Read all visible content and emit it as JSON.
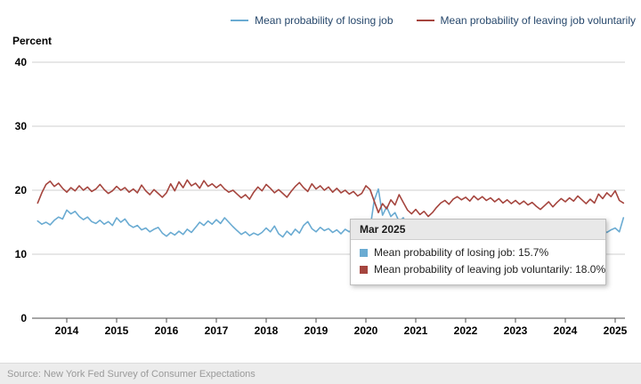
{
  "axis": {
    "y_title": "Percent"
  },
  "tooltip": {
    "title": "Mar 2025",
    "rows": [
      {
        "text": "Mean probability of losing job: 15.7%",
        "color": "#6aabd2"
      },
      {
        "text": "Mean probability of leaving job voluntarily: 18.0%",
        "color": "#a5453e"
      }
    ]
  },
  "footer": {
    "source": "Source: New York Fed Survey of Consumer Expectations"
  },
  "chart_data": {
    "type": "line",
    "title": "",
    "ylabel": "Percent",
    "ylim": [
      0,
      40
    ],
    "yticks": [
      0,
      10,
      20,
      30,
      40
    ],
    "xticks": [
      2014,
      2015,
      2016,
      2017,
      2018,
      2019,
      2020,
      2021,
      2022,
      2023,
      2024,
      2025
    ],
    "grid": "horizontal",
    "legend_position": "top-right",
    "x_start": {
      "year": 2013,
      "month": 6
    },
    "frequency": "monthly",
    "series": [
      {
        "name": "Mean probability of losing job",
        "color": "#6aabd2",
        "values": [
          15.2,
          14.7,
          15.0,
          14.6,
          15.3,
          15.8,
          15.5,
          16.9,
          16.3,
          16.7,
          15.9,
          15.4,
          15.8,
          15.1,
          14.8,
          15.3,
          14.7,
          15.1,
          14.5,
          15.7,
          15.0,
          15.5,
          14.6,
          14.2,
          14.5,
          13.8,
          14.1,
          13.5,
          13.9,
          14.2,
          13.3,
          12.8,
          13.4,
          13.0,
          13.6,
          13.1,
          13.9,
          13.4,
          14.2,
          15.0,
          14.5,
          15.2,
          14.7,
          15.4,
          14.8,
          15.7,
          15.0,
          14.3,
          13.7,
          13.1,
          13.5,
          12.9,
          13.3,
          13.0,
          13.4,
          14.1,
          13.5,
          14.4,
          13.2,
          12.7,
          13.6,
          13.0,
          13.9,
          13.3,
          14.5,
          15.1,
          14.0,
          13.5,
          14.2,
          13.7,
          14.0,
          13.4,
          13.8,
          13.2,
          13.9,
          13.5,
          14.1,
          13.3,
          13.6,
          13.8,
          14.0,
          18.4,
          20.2,
          16.1,
          17.4,
          15.9,
          16.5,
          15.1,
          15.7,
          14.6,
          15.2,
          14.5,
          13.9,
          13.1,
          12.5,
          12.8,
          12.1,
          11.8,
          12.3,
          11.5,
          12.0,
          12.4,
          11.7,
          12.2,
          11.7,
          12.1,
          11.4,
          11.8,
          12.3,
          11.7,
          12.5,
          11.9,
          12.7,
          12.1,
          12.4,
          11.8,
          12.2,
          11.6,
          12.0,
          12.5,
          11.9,
          12.3,
          11.7,
          12.9,
          12.4,
          13.1,
          12.6,
          13.0,
          12.5,
          13.3,
          12.8,
          13.2,
          14.1,
          14.7,
          13.6,
          13.2,
          13.9,
          13.4,
          13.8,
          14.1,
          13.5,
          15.7
        ]
      },
      {
        "name": "Mean probability of leaving job voluntarily",
        "color": "#a5453e",
        "values": [
          18.0,
          19.6,
          20.9,
          21.4,
          20.6,
          21.1,
          20.3,
          19.7,
          20.4,
          19.9,
          20.7,
          20.0,
          20.5,
          19.8,
          20.2,
          20.9,
          20.1,
          19.5,
          19.9,
          20.6,
          20.0,
          20.4,
          19.7,
          20.2,
          19.6,
          20.8,
          19.9,
          19.3,
          20.1,
          19.5,
          18.9,
          19.6,
          21.0,
          19.9,
          21.3,
          20.4,
          21.6,
          20.7,
          21.1,
          20.3,
          21.5,
          20.6,
          21.0,
          20.4,
          20.9,
          20.2,
          19.7,
          20.0,
          19.4,
          18.8,
          19.3,
          18.6,
          19.7,
          20.5,
          19.9,
          20.9,
          20.3,
          19.6,
          20.1,
          19.5,
          18.9,
          19.8,
          20.6,
          21.2,
          20.4,
          19.8,
          21.0,
          20.2,
          20.7,
          20.0,
          20.5,
          19.7,
          20.3,
          19.6,
          20.0,
          19.4,
          19.8,
          19.1,
          19.5,
          20.7,
          20.1,
          18.3,
          16.5,
          17.9,
          17.1,
          18.5,
          17.7,
          19.3,
          18.1,
          16.9,
          16.3,
          17.0,
          16.2,
          16.7,
          15.9,
          16.5,
          17.3,
          18.0,
          18.4,
          17.8,
          18.6,
          19.0,
          18.5,
          18.9,
          18.3,
          19.1,
          18.5,
          19.0,
          18.4,
          18.8,
          18.2,
          18.7,
          18.0,
          18.5,
          17.9,
          18.4,
          17.8,
          18.3,
          17.7,
          18.1,
          17.5,
          17.0,
          17.6,
          18.2,
          17.4,
          18.1,
          18.7,
          18.2,
          18.8,
          18.3,
          19.1,
          18.5,
          17.9,
          18.6,
          18.0,
          19.4,
          18.7,
          19.6,
          19.0,
          19.9,
          18.4,
          18.0
        ]
      }
    ]
  }
}
